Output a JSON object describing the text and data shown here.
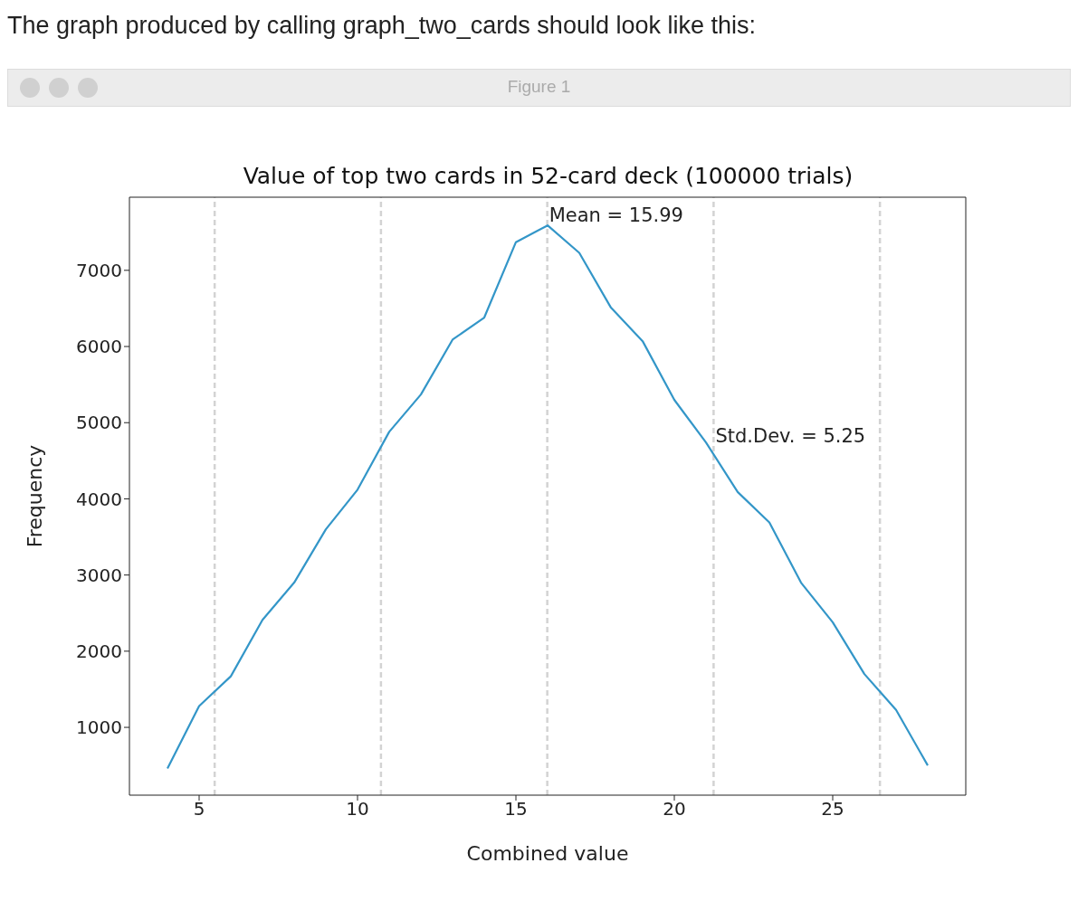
{
  "chart_data": {
    "type": "line",
    "title": "Value of top two cards in 52-card deck (100000 trials)",
    "xlabel": "Combined value",
    "ylabel": "Frequency",
    "x": [
      4,
      5,
      6,
      7,
      8,
      9,
      10,
      11,
      12,
      13,
      14,
      15,
      16,
      17,
      18,
      19,
      20,
      21,
      22,
      23,
      24,
      25,
      26,
      27,
      28
    ],
    "series": [
      {
        "color": "#3396c8",
        "values": [
          460,
          1280,
          1670,
          2410,
          2900,
          3600,
          4120,
          4880,
          5370,
          6090,
          6380,
          7370,
          7590,
          7230,
          6510,
          6070,
          5300,
          4740,
          4090,
          3690,
          2900,
          2380,
          1700,
          1230,
          500
        ]
      }
    ],
    "xlim": [
      2.8,
      29.2
    ],
    "xticks": [
      5,
      10,
      15,
      20,
      25
    ],
    "ylim": [
      110,
      7960
    ],
    "yticks": [
      1000,
      2000,
      3000,
      4000,
      5000,
      6000,
      7000
    ],
    "ref_lines": [
      {
        "axis": "x",
        "value": 5.49,
        "color": "#d3d3d3",
        "line_style": "dashed"
      },
      {
        "axis": "x",
        "value": 10.74,
        "color": "#d3d3d3",
        "line_style": "dashed"
      },
      {
        "axis": "x",
        "value": 15.99,
        "color": "#d3d3d3",
        "line_style": "dashed"
      },
      {
        "axis": "x",
        "value": 21.24,
        "color": "#d3d3d3",
        "line_style": "dashed"
      },
      {
        "axis": "x",
        "value": 26.49,
        "color": "#d3d3d3",
        "line_style": "dashed"
      }
    ],
    "annotations": [
      "The graph produced by calling graph_two_cards should look like this:",
      "Figure 1",
      {
        "text": "Mean = 15.99",
        "x": 15.99,
        "y": 7590
      },
      {
        "text": "Std.Dev. = 5.25",
        "x": 21.24,
        "y": 4700
      }
    ],
    "grid": false,
    "legend": false,
    "marker": "none",
    "line_style": "solid"
  }
}
